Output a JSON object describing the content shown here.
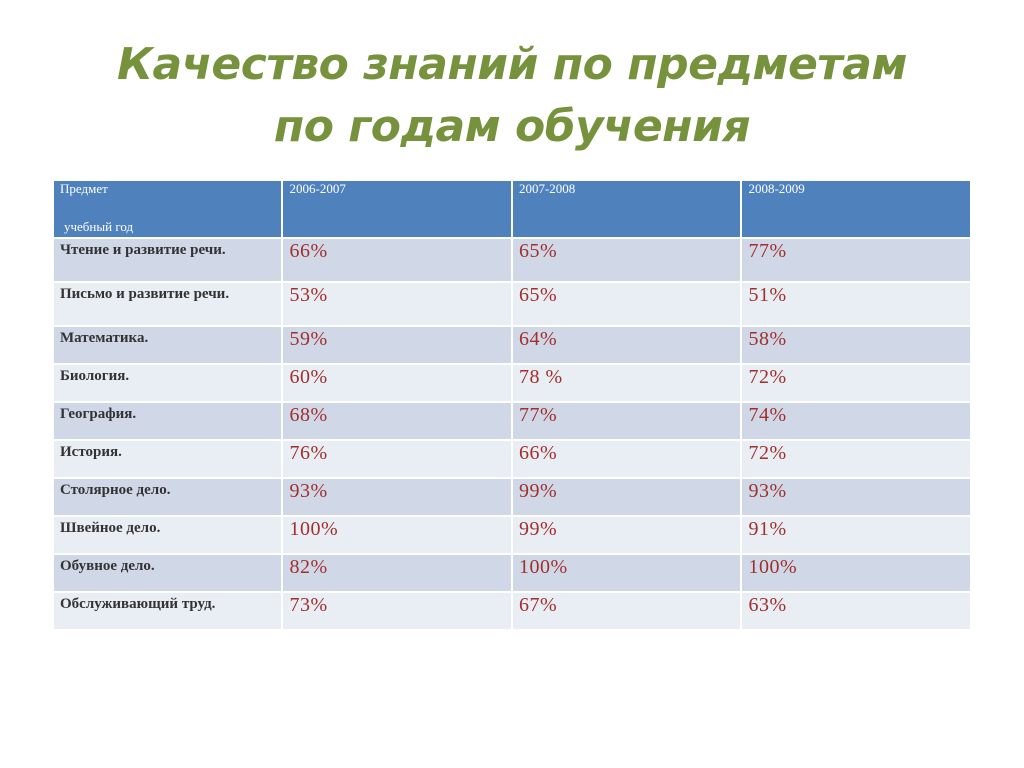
{
  "title": {
    "line1": "Качество знаний по предметам",
    "line2": "по годам обучения"
  },
  "table": {
    "header": {
      "subject_line1": "Предмет",
      "subject_line2": "учебный год",
      "years": [
        "2006-2007",
        "2007-2008",
        "2008-2009"
      ]
    },
    "rows": [
      {
        "subject": "Чтение и развитие речи.",
        "values": [
          "66%",
          "65%",
          "77%"
        ]
      },
      {
        "subject": "Письмо и развитие речи.",
        "values": [
          "53%",
          "65%",
          "51%"
        ]
      },
      {
        "subject": "Математика.",
        "values": [
          "59%",
          "64%",
          "58%"
        ]
      },
      {
        "subject": "Биология.",
        "values": [
          "60%",
          "78 %",
          "72%"
        ]
      },
      {
        "subject": "География.",
        "values": [
          "68%",
          "77%",
          "74%"
        ]
      },
      {
        "subject": "История.",
        "values": [
          "76%",
          "66%",
          "72%"
        ]
      },
      {
        "subject": "Столярное дело.",
        "values": [
          "93%",
          "99%",
          "93%"
        ]
      },
      {
        "subject": "Швейное дело.",
        "values": [
          "100%",
          "99%",
          "91%"
        ]
      },
      {
        "subject": "Обувное дело.",
        "values": [
          "82%",
          "100%",
          "100%"
        ]
      },
      {
        "subject": "Обслуживающий труд.",
        "values": [
          "73%",
          "67%",
          "63%"
        ]
      }
    ]
  },
  "colors": {
    "title": "#76923c",
    "header_bg": "#4f81bd",
    "row_dark": "#d0d8e8",
    "row_light": "#e9edf4",
    "value_text": "#a0302c"
  }
}
